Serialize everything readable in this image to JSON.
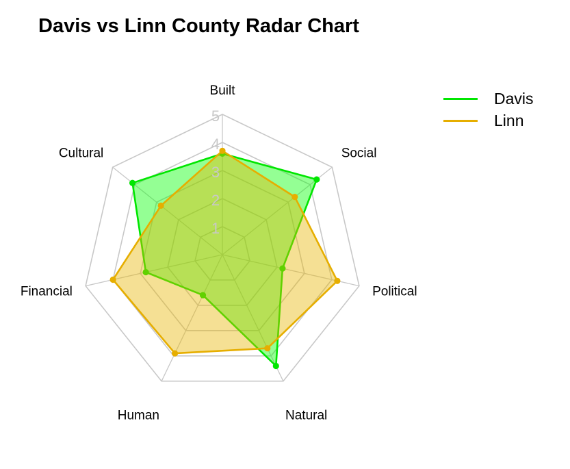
{
  "chart_data": {
    "type": "radar",
    "title": "Davis vs Linn County Radar Chart",
    "axes": [
      "Built",
      "Social",
      "Political",
      "Natural",
      "Human",
      "Financial",
      "Cultural"
    ],
    "ticks": [
      "1",
      "2",
      "3",
      "4",
      "5"
    ],
    "rmin": 0,
    "rmax": 5,
    "grid": true,
    "legend_position": "top-right",
    "series": [
      {
        "name": "Davis",
        "color": "#00E600",
        "fill": "#00FF00",
        "values": [
          3.6,
          4.3,
          2.2,
          4.4,
          1.6,
          2.8,
          4.1
        ]
      },
      {
        "name": "Linn",
        "color": "#E6AE00",
        "fill": "#E6B400",
        "values": [
          3.7,
          3.3,
          4.2,
          3.7,
          3.9,
          4.0,
          2.8
        ]
      }
    ]
  }
}
